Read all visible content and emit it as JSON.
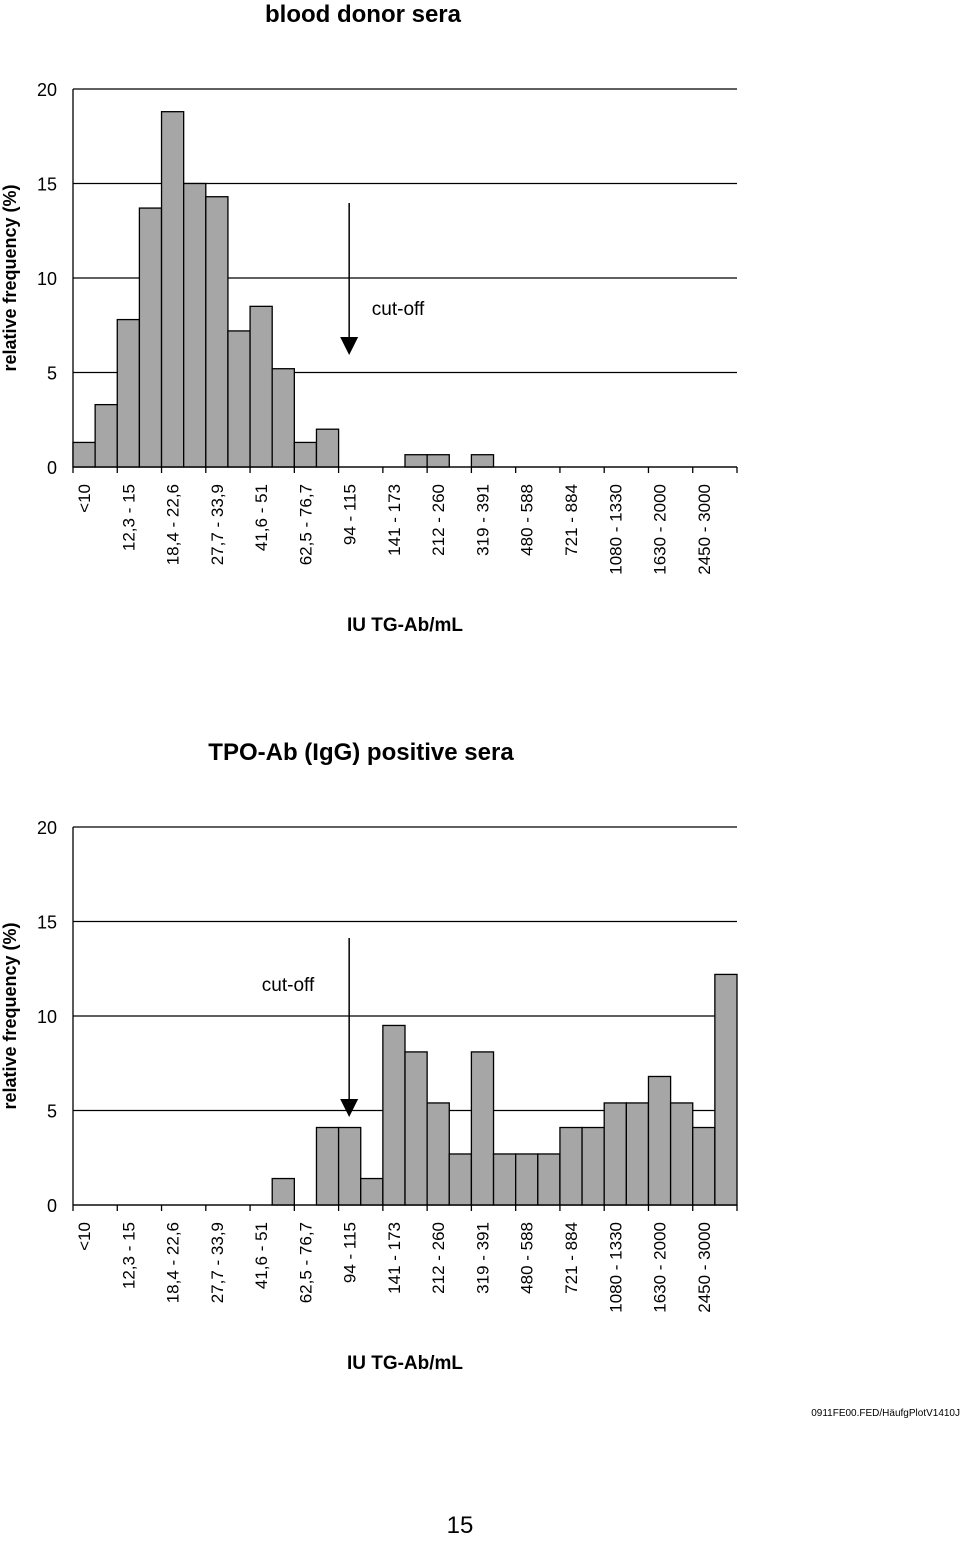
{
  "chart_data": [
    {
      "type": "bar",
      "title": "blood donor sera",
      "xlabel": "IU TG-Ab/mL",
      "ylabel": "relative frequency (%)",
      "ylim": [
        0,
        20
      ],
      "yticks": [
        0,
        5,
        10,
        15,
        20
      ],
      "categories": [
        "<10",
        "",
        "12,3 - 15",
        "",
        "18,4 - 22,6",
        "",
        "27,7 - 33,9",
        "",
        "41,6 - 51",
        "",
        "62,5 - 76,7",
        "",
        "94 - 115",
        "",
        "141 - 173",
        "",
        "212 - 260",
        "",
        "319 - 391",
        "",
        "480 - 588",
        "",
        "721 - 884",
        "",
        "1080 - 1330",
        "",
        "1630 - 2000",
        "",
        "2450 - 3000",
        ""
      ],
      "values": [
        1.3,
        3.3,
        7.8,
        13.7,
        18.8,
        15.0,
        14.3,
        7.2,
        8.5,
        5.2,
        1.3,
        2.0,
        0,
        0,
        0,
        0.65,
        0.65,
        0,
        0.65,
        0,
        0,
        0,
        0,
        0,
        0,
        0,
        0,
        0,
        0,
        0
      ],
      "annotation": {
        "text": "cut-off",
        "at_category_index": 12
      }
    },
    {
      "type": "bar",
      "title": "TPO-Ab (IgG) positive sera",
      "xlabel": "IU TG-Ab/mL",
      "ylabel": "relative frequency (%)",
      "ylim": [
        0,
        20
      ],
      "yticks": [
        0,
        5,
        10,
        15,
        20
      ],
      "categories": [
        "<10",
        "",
        "12,3 - 15",
        "",
        "18,4 - 22,6",
        "",
        "27,7 - 33,9",
        "",
        "41,6 - 51",
        "",
        "62,5 - 76,7",
        "",
        "94 - 115",
        "",
        "141 - 173",
        "",
        "212 - 260",
        "",
        "319 - 391",
        "",
        "480 - 588",
        "",
        "721 - 884",
        "",
        "1080 - 1330",
        "",
        "1630 - 2000",
        "",
        "2450 - 3000",
        ""
      ],
      "values": [
        0,
        0,
        0,
        0,
        0,
        0,
        0,
        0,
        0,
        1.4,
        0,
        4.1,
        4.1,
        1.4,
        9.5,
        8.1,
        5.4,
        2.7,
        8.1,
        2.7,
        2.7,
        2.7,
        4.1,
        4.1,
        5.4,
        5.4,
        6.8,
        5.4,
        4.1,
        12.2
      ],
      "annotation": {
        "text": "cut-off",
        "at_category_index": 12
      }
    }
  ],
  "footer": {
    "code": "0911FE00.FED/HäufgPlotV1410J",
    "page_number": "15"
  },
  "colors": {
    "bar_fill": "#a6a6a6",
    "bar_stroke": "#000000",
    "gridline": "#000000"
  }
}
